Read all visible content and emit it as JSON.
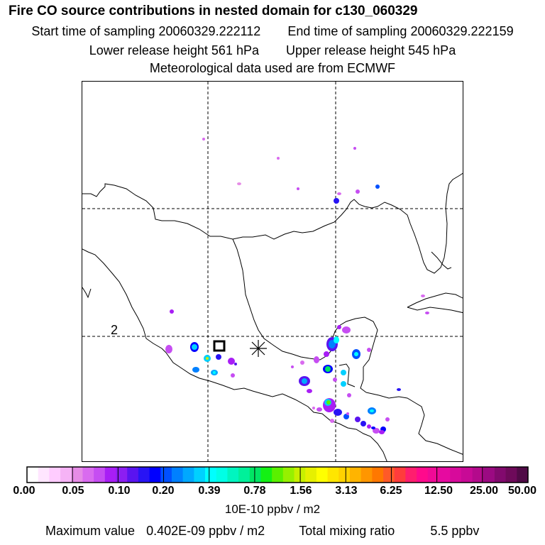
{
  "header": {
    "title": "Fire CO source contributions in nested domain for c130_060329",
    "start_label": "Start time of sampling",
    "start_value": "20060329.222112",
    "end_label": "End time of sampling",
    "end_value": "20060329.222159",
    "lower_label": "Lower release height",
    "lower_value": "561 hPa",
    "upper_label": "Upper release height",
    "upper_value": "545 hPa",
    "met_text": "Meteorological data used are from ECMWF"
  },
  "map": {
    "gridline_style": "dashed",
    "grid_columns": 3,
    "grid_rows": 3,
    "coastline_color": "#000000",
    "release_marker": "asterisk",
    "receptor_marker": "square",
    "map_label": "2"
  },
  "colorbar": {
    "tick_labels": [
      "0.00",
      "0.05",
      "0.10",
      "0.20",
      "0.39",
      "0.78",
      "1.56",
      "3.13",
      "6.25",
      "12.50",
      "25.00",
      "50.00"
    ],
    "colors": [
      "#ffffff",
      "#ffe6ff",
      "#ffccff",
      "#f6b3f6",
      "#e68ce6",
      "#d96bef",
      "#c64df2",
      "#a81ef5",
      "#8c1ef2",
      "#5a14f0",
      "#2814f5",
      "#0000ff",
      "#0050ff",
      "#0080ff",
      "#00a8ff",
      "#00d0ff",
      "#00ffff",
      "#00ffe6",
      "#00f5c0",
      "#00f09a",
      "#00e664",
      "#14f014",
      "#5af000",
      "#96f000",
      "#c8f000",
      "#e6f000",
      "#ffff00",
      "#ffe600",
      "#ffd200",
      "#ffb400",
      "#ff9600",
      "#ff7800",
      "#ff5a28",
      "#ff3c3c",
      "#ff1e6e",
      "#ff0a8c",
      "#f00a96",
      "#e60aa0",
      "#d70a9b",
      "#c80a96",
      "#b40a8c",
      "#9b0a82",
      "#820a6e",
      "#6e0a5a",
      "#500a46"
    ],
    "units": "10E-10 ppbv / m2"
  },
  "footer": {
    "max_label": "Maximum value",
    "max_value": "0.402E-09 ppbv / m2",
    "total_label": "Total mixing ratio",
    "total_value": "5.5 ppbv"
  }
}
